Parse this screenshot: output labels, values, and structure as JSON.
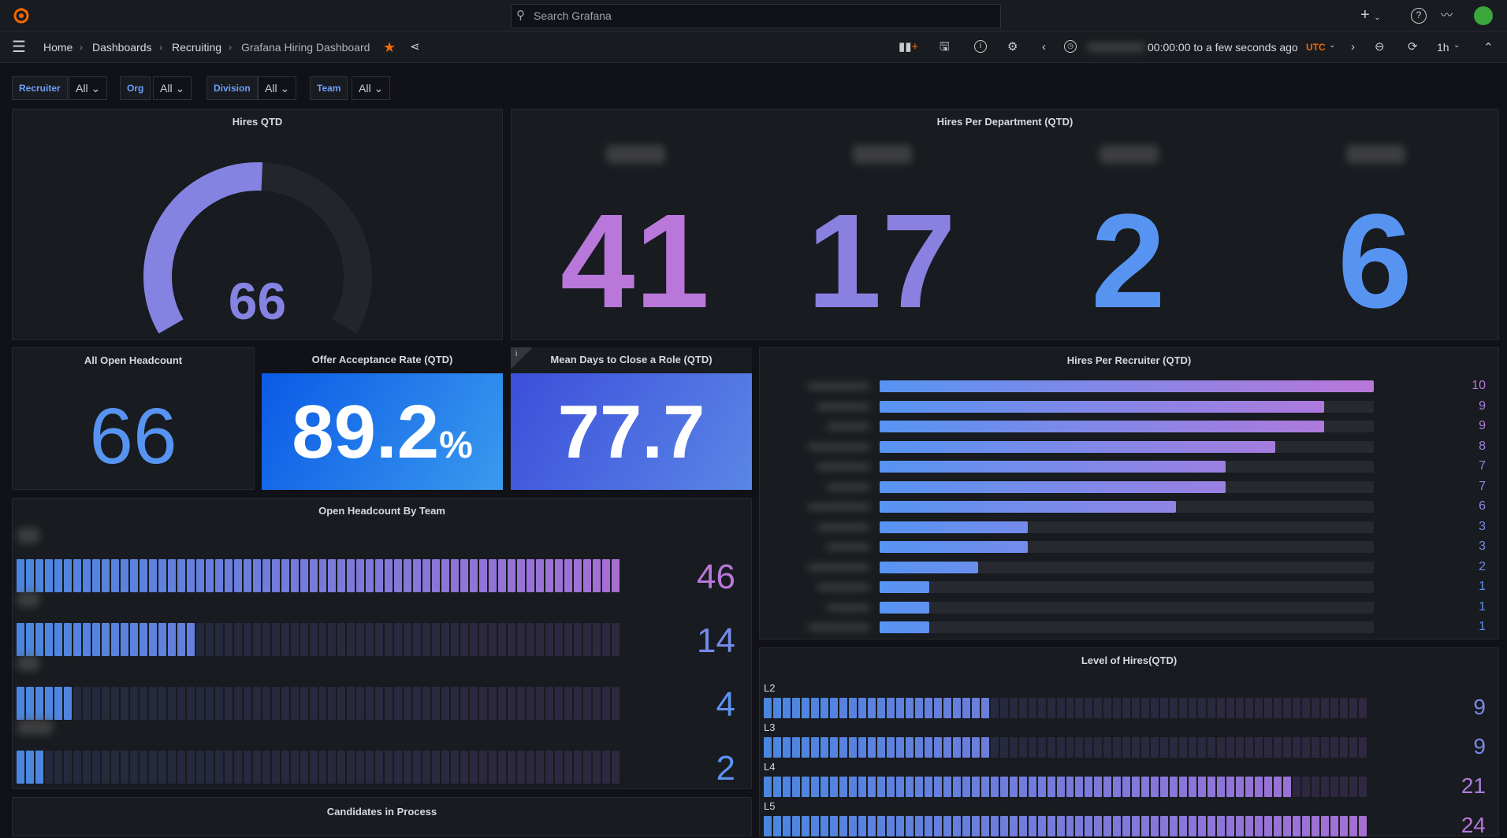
{
  "topbar": {
    "search_placeholder": "Search Grafana",
    "icons": [
      "grafana-logo",
      "search-icon",
      "plus-icon",
      "help-icon",
      "rss-icon",
      "avatar"
    ]
  },
  "navbar": {
    "breadcrumb": [
      "Home",
      "Dashboards",
      "Recruiting",
      "Grafana Hiring Dashboard"
    ],
    "time_range": "00:00:00 to a few seconds ago",
    "timezone": "UTC",
    "refresh": "1h",
    "accent": "#f46800"
  },
  "variables": [
    {
      "label": "Recruiter",
      "value": "All"
    },
    {
      "label": "Org",
      "value": "All"
    },
    {
      "label": "Division",
      "value": "All"
    },
    {
      "label": "Team",
      "value": "All"
    }
  ],
  "panels": {
    "hires_qtd": {
      "title": "Hires QTD",
      "value": "66",
      "gauge_fill_fraction": 0.51,
      "color": "#8583e2"
    },
    "hires_per_department": {
      "title": "Hires Per Department (QTD)",
      "values": [
        "41",
        "17",
        "2",
        "6"
      ],
      "colors": [
        "#b877d9",
        "#8a80e0",
        "#5794f2",
        "#5794f2"
      ]
    },
    "all_open_headcount": {
      "title": "All Open Headcount",
      "value": "66",
      "color": "#5794f2"
    },
    "offer_acceptance": {
      "title": "Offer Acceptance Rate (QTD)",
      "value": "89.2",
      "unit": "%"
    },
    "mean_days": {
      "title": "Mean Days to Close a Role (QTD)",
      "value": "77.7",
      "info": "i"
    },
    "hires_per_recruiter": {
      "title": "Hires Per Recruiter (QTD)",
      "max": 10,
      "values": [
        10,
        9,
        9,
        8,
        7,
        7,
        6,
        3,
        3,
        2,
        1,
        1,
        1
      ],
      "labels": [
        "10",
        "9",
        "9",
        "8",
        "7",
        "7",
        "6",
        "3",
        "3",
        "2",
        "1",
        "1",
        "1"
      ]
    },
    "open_headcount_by_team": {
      "title": "Open Headcount By Team",
      "max": 46,
      "values": [
        46,
        14,
        4,
        2
      ],
      "labels": [
        "46",
        "14",
        "4",
        "2"
      ]
    },
    "level_of_hires": {
      "title": "Level of Hires(QTD)",
      "max": 24,
      "rows": [
        {
          "level": "L2",
          "value": "9"
        },
        {
          "level": "L3",
          "value": "9"
        },
        {
          "level": "L4",
          "value": "21"
        },
        {
          "level": "L5",
          "value": "24"
        }
      ]
    },
    "candidates_in_process": {
      "title": "Candidates in Process"
    }
  }
}
